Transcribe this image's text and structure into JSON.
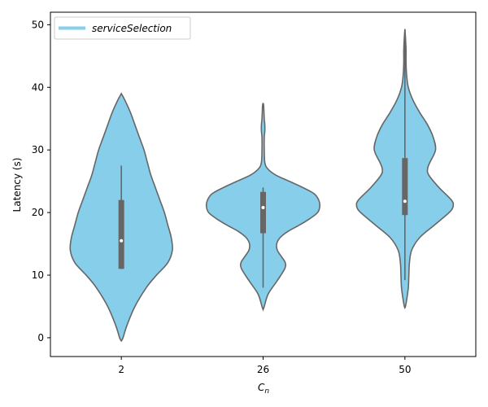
{
  "chart_data": {
    "type": "violin",
    "xlabel_base": "C",
    "xlabel_sub": "n",
    "ylabel": "Latency (s)",
    "ylim": [
      -3,
      52
    ],
    "yticks": [
      0,
      10,
      20,
      30,
      40,
      50
    ],
    "categories": [
      "2",
      "26",
      "50"
    ],
    "grid": false,
    "legend": {
      "position": "top-left",
      "entries": [
        {
          "name": "serviceSelection",
          "color": "#87CEEB"
        }
      ]
    },
    "colors": {
      "violin_fill": "#87CEEB",
      "violin_edge": "#666666",
      "box": "#666666",
      "median": "#ffffff"
    },
    "series": [
      {
        "name": "serviceSelection",
        "violins": [
          {
            "category": "2",
            "min": -0.5,
            "max": 39.0,
            "q1": 11.0,
            "median": 15.5,
            "q3": 22.0,
            "whisker_low": 11.0,
            "whisker_high": 27.5,
            "density": [
              [
                -0.5,
                0.0
              ],
              [
                0,
                0.03
              ],
              [
                2,
                0.1
              ],
              [
                5,
                0.24
              ],
              [
                8,
                0.44
              ],
              [
                10,
                0.62
              ],
              [
                12,
                0.82
              ],
              [
                14,
                0.9
              ],
              [
                16,
                0.88
              ],
              [
                18,
                0.82
              ],
              [
                20,
                0.76
              ],
              [
                22,
                0.68
              ],
              [
                24,
                0.6
              ],
              [
                26,
                0.52
              ],
              [
                28,
                0.46
              ],
              [
                30,
                0.4
              ],
              [
                32,
                0.32
              ],
              [
                34,
                0.24
              ],
              [
                36,
                0.16
              ],
              [
                38,
                0.06
              ],
              [
                39,
                0.0
              ]
            ]
          },
          {
            "category": "26",
            "min": 4.5,
            "max": 37.5,
            "q1": 16.7,
            "median": 20.8,
            "q3": 23.3,
            "whisker_low": 8.0,
            "whisker_high": 24.0,
            "density": [
              [
                4.5,
                0.0
              ],
              [
                5,
                0.02
              ],
              [
                7,
                0.09
              ],
              [
                9,
                0.24
              ],
              [
                11,
                0.38
              ],
              [
                12,
                0.39
              ],
              [
                13,
                0.32
              ],
              [
                14,
                0.25
              ],
              [
                15,
                0.24
              ],
              [
                16,
                0.3
              ],
              [
                17,
                0.44
              ],
              [
                18,
                0.64
              ],
              [
                19,
                0.82
              ],
              [
                20,
                0.96
              ],
              [
                21,
                1.0
              ],
              [
                22,
                0.98
              ],
              [
                23,
                0.9
              ],
              [
                24,
                0.7
              ],
              [
                25,
                0.46
              ],
              [
                26,
                0.22
              ],
              [
                27,
                0.08
              ],
              [
                28,
                0.03
              ],
              [
                30,
                0.02
              ],
              [
                32,
                0.02
              ],
              [
                33,
                0.03
              ],
              [
                34,
                0.03
              ],
              [
                35,
                0.02
              ],
              [
                37,
                0.01
              ],
              [
                37.5,
                0.0
              ]
            ]
          },
          {
            "category": "50",
            "min": 4.8,
            "max": 49.3,
            "q1": 19.6,
            "median": 21.8,
            "q3": 28.7,
            "whisker_low": 9.2,
            "whisker_high": 49.3,
            "density": [
              [
                4.8,
                0.0
              ],
              [
                5,
                0.01
              ],
              [
                6,
                0.03
              ],
              [
                8,
                0.06
              ],
              [
                10,
                0.07
              ],
              [
                12,
                0.08
              ],
              [
                14,
                0.12
              ],
              [
                16,
                0.26
              ],
              [
                18,
                0.52
              ],
              [
                20,
                0.78
              ],
              [
                21,
                0.85
              ],
              [
                22,
                0.82
              ],
              [
                24,
                0.6
              ],
              [
                26,
                0.42
              ],
              [
                27,
                0.4
              ],
              [
                28,
                0.44
              ],
              [
                30,
                0.54
              ],
              [
                32,
                0.5
              ],
              [
                34,
                0.4
              ],
              [
                36,
                0.26
              ],
              [
                38,
                0.14
              ],
              [
                40,
                0.06
              ],
              [
                42,
                0.03
              ],
              [
                44,
                0.02
              ],
              [
                46,
                0.02
              ],
              [
                48,
                0.01
              ],
              [
                49.3,
                0.0
              ]
            ]
          }
        ]
      }
    ]
  }
}
